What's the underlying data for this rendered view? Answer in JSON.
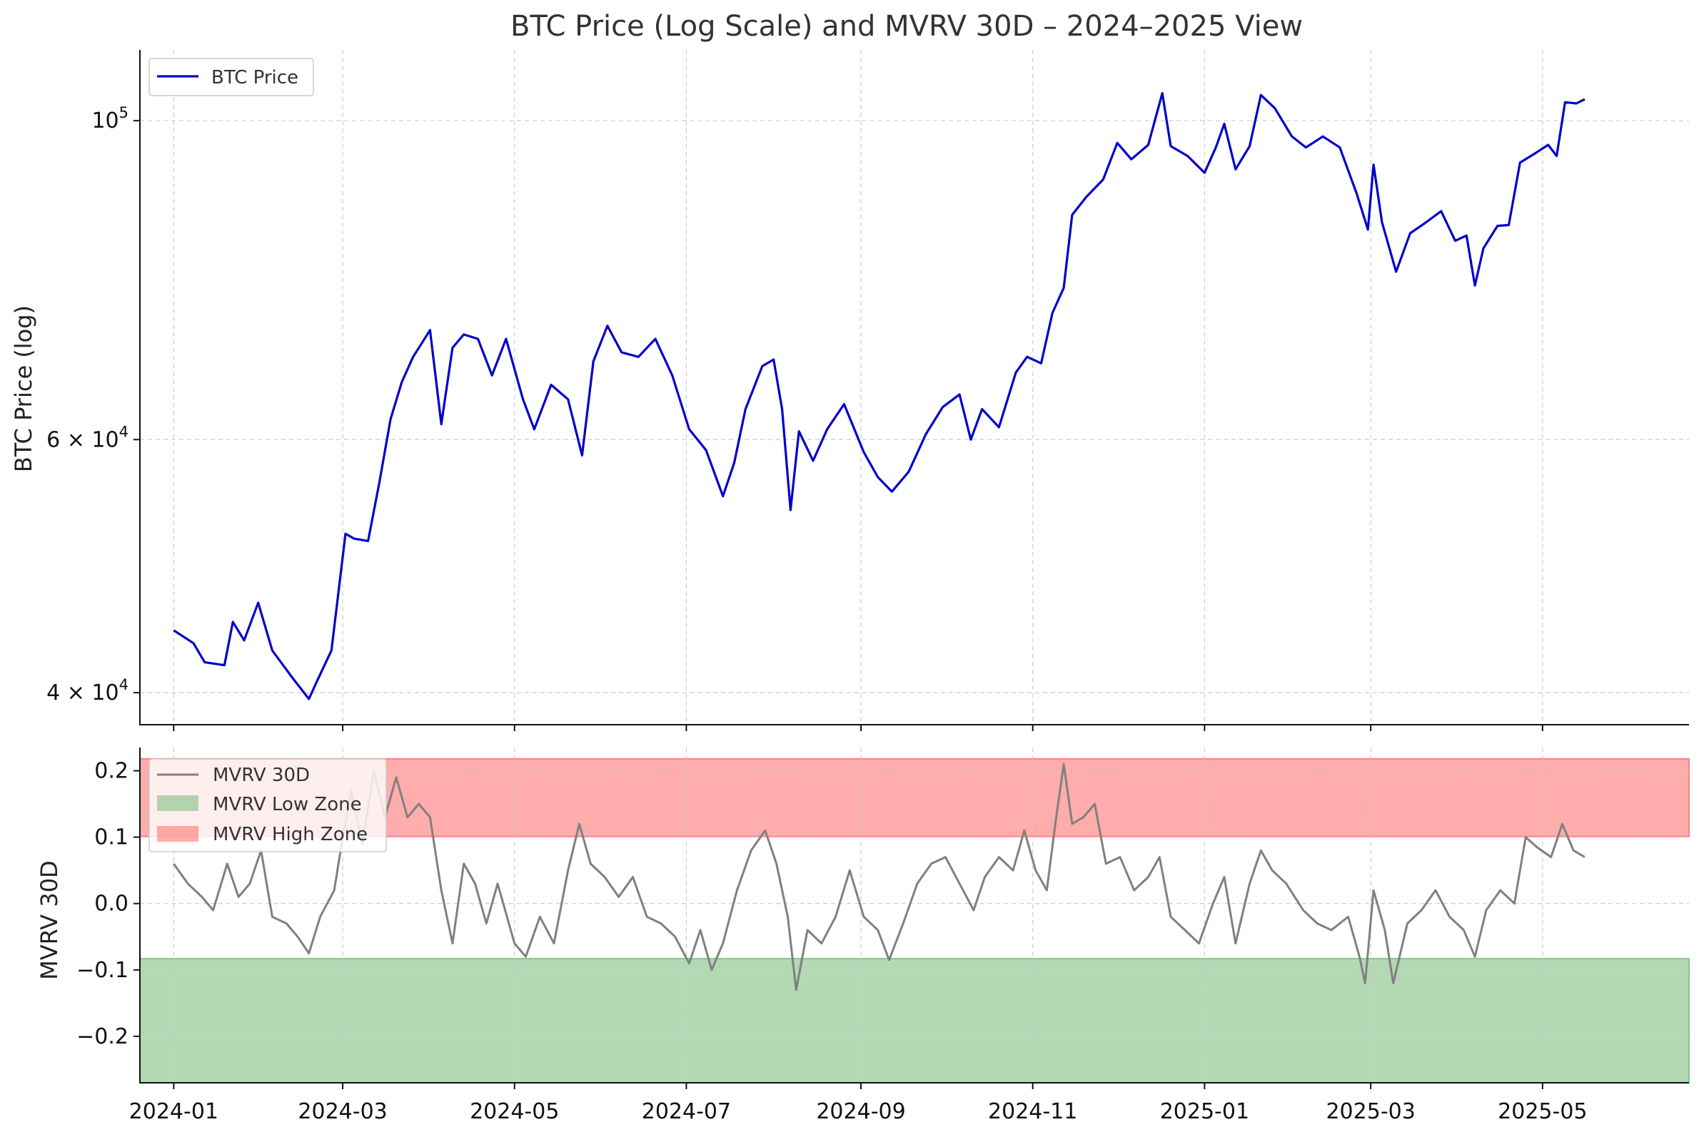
{
  "chart_data": [
    {
      "type": "line",
      "title": "BTC Price (Log Scale) and MVRV 30D – 2024–2025 View",
      "ylabel": "BTC Price (log)",
      "y_scale": "log",
      "ylim": [
        38000,
        112000
      ],
      "grid": true,
      "legend_position": "top-left",
      "y_ticks": [
        {
          "value": 40000,
          "base": "4 × 10",
          "exp": "4"
        },
        {
          "value": 60000,
          "base": "6 × 10",
          "exp": "4"
        },
        {
          "value": 100000,
          "base": "10",
          "exp": "5"
        }
      ],
      "series": [
        {
          "name": "BTC Price",
          "color": "#0000cc",
          "points": [
            [
              "2024-01-01",
              44200
            ],
            [
              "2024-01-08",
              43300
            ],
            [
              "2024-01-12",
              42000
            ],
            [
              "2024-01-19",
              41800
            ],
            [
              "2024-01-22",
              44800
            ],
            [
              "2024-01-26",
              43500
            ],
            [
              "2024-01-31",
              46200
            ],
            [
              "2024-02-05",
              42800
            ],
            [
              "2024-02-12",
              41000
            ],
            [
              "2024-02-18",
              39600
            ],
            [
              "2024-02-21",
              40800
            ],
            [
              "2024-02-26",
              42800
            ],
            [
              "2024-03-02",
              51600
            ],
            [
              "2024-03-05",
              51200
            ],
            [
              "2024-03-10",
              51000
            ],
            [
              "2024-03-14",
              56000
            ],
            [
              "2024-03-18",
              62000
            ],
            [
              "2024-03-22",
              65800
            ],
            [
              "2024-03-26",
              68500
            ],
            [
              "2024-04-01",
              71500
            ],
            [
              "2024-04-05",
              61500
            ],
            [
              "2024-04-09",
              69500
            ],
            [
              "2024-04-13",
              71000
            ],
            [
              "2024-04-18",
              70500
            ],
            [
              "2024-04-23",
              66500
            ],
            [
              "2024-04-28",
              70500
            ],
            [
              "2024-05-04",
              64000
            ],
            [
              "2024-05-08",
              61000
            ],
            [
              "2024-05-14",
              65500
            ],
            [
              "2024-05-20",
              64000
            ],
            [
              "2024-05-25",
              58500
            ],
            [
              "2024-05-29",
              68000
            ],
            [
              "2024-06-03",
              72000
            ],
            [
              "2024-06-08",
              69000
            ],
            [
              "2024-06-14",
              68500
            ],
            [
              "2024-06-20",
              70500
            ],
            [
              "2024-06-26",
              66500
            ],
            [
              "2024-07-02",
              61000
            ],
            [
              "2024-07-08",
              59000
            ],
            [
              "2024-07-14",
              54800
            ],
            [
              "2024-07-18",
              57800
            ],
            [
              "2024-07-22",
              63000
            ],
            [
              "2024-07-28",
              67500
            ],
            [
              "2024-08-01",
              68200
            ],
            [
              "2024-08-04",
              63000
            ],
            [
              "2024-08-07",
              53600
            ],
            [
              "2024-08-10",
              60800
            ],
            [
              "2024-08-15",
              58000
            ],
            [
              "2024-08-20",
              61000
            ],
            [
              "2024-08-26",
              63500
            ],
            [
              "2024-09-02",
              58800
            ],
            [
              "2024-09-07",
              56500
            ],
            [
              "2024-09-12",
              55200
            ],
            [
              "2024-09-18",
              57000
            ],
            [
              "2024-09-24",
              60500
            ],
            [
              "2024-09-30",
              63200
            ],
            [
              "2024-10-06",
              64500
            ],
            [
              "2024-10-10",
              60000
            ],
            [
              "2024-10-14",
              63000
            ],
            [
              "2024-10-20",
              61200
            ],
            [
              "2024-10-26",
              66800
            ],
            [
              "2024-10-30",
              68500
            ],
            [
              "2024-11-04",
              67800
            ],
            [
              "2024-11-08",
              73500
            ],
            [
              "2024-11-12",
              76500
            ],
            [
              "2024-11-15",
              86000
            ],
            [
              "2024-11-20",
              88500
            ],
            [
              "2024-11-26",
              91000
            ],
            [
              "2024-12-01",
              96500
            ],
            [
              "2024-12-06",
              94000
            ],
            [
              "2024-12-12",
              96200
            ],
            [
              "2024-12-17",
              104500
            ],
            [
              "2024-12-20",
              96000
            ],
            [
              "2024-12-26",
              94500
            ],
            [
              "2025-01-01",
              92000
            ],
            [
              "2025-01-05",
              95800
            ],
            [
              "2025-01-08",
              99500
            ],
            [
              "2025-01-12",
              92500
            ],
            [
              "2025-01-17",
              96000
            ],
            [
              "2025-01-21",
              104200
            ],
            [
              "2025-01-26",
              102000
            ],
            [
              "2025-02-01",
              97500
            ],
            [
              "2025-02-06",
              95800
            ],
            [
              "2025-02-12",
              97500
            ],
            [
              "2025-02-18",
              95800
            ],
            [
              "2025-02-24",
              89000
            ],
            [
              "2025-02-28",
              84000
            ],
            [
              "2025-03-02",
              93200
            ],
            [
              "2025-03-05",
              85000
            ],
            [
              "2025-03-10",
              78500
            ],
            [
              "2025-03-15",
              83500
            ],
            [
              "2025-03-20",
              84800
            ],
            [
              "2025-03-26",
              86500
            ],
            [
              "2025-03-31",
              82500
            ],
            [
              "2025-04-04",
              83200
            ],
            [
              "2025-04-07",
              76800
            ],
            [
              "2025-04-10",
              81500
            ],
            [
              "2025-04-15",
              84500
            ],
            [
              "2025-04-19",
              84600
            ],
            [
              "2025-04-23",
              93500
            ],
            [
              "2025-04-28",
              94800
            ],
            [
              "2025-05-03",
              96200
            ],
            [
              "2025-05-06",
              94500
            ],
            [
              "2025-05-09",
              103000
            ],
            [
              "2025-05-13",
              102800
            ],
            [
              "2025-05-16",
              103500
            ]
          ]
        }
      ]
    },
    {
      "type": "line",
      "ylabel": "MVRV 30D",
      "ylim": [
        -0.27,
        0.235
      ],
      "grid": true,
      "legend_position": "top-left",
      "y_ticks": [
        {
          "value": 0.2,
          "label": "0.2"
        },
        {
          "value": 0.1,
          "label": "0.1"
        },
        {
          "value": 0.0,
          "label": "0.0"
        },
        {
          "value": -0.1,
          "label": "−0.1"
        },
        {
          "value": -0.2,
          "label": "−0.2"
        }
      ],
      "x_ticks": [
        {
          "date": "2024-01-01",
          "label": "2024-01"
        },
        {
          "date": "2024-03-01",
          "label": "2024-03"
        },
        {
          "date": "2024-05-01",
          "label": "2024-05"
        },
        {
          "date": "2024-07-01",
          "label": "2024-07"
        },
        {
          "date": "2024-09-01",
          "label": "2024-09"
        },
        {
          "date": "2024-11-01",
          "label": "2024-11"
        },
        {
          "date": "2025-01-01",
          "label": "2025-01"
        },
        {
          "date": "2025-03-01",
          "label": "2025-03"
        },
        {
          "date": "2025-05-01",
          "label": "2025-05"
        }
      ],
      "bands": [
        {
          "name": "MVRV Low Zone",
          "from": -0.27,
          "to": -0.083,
          "color": "#8bc58b"
        },
        {
          "name": "MVRV High Zone",
          "from": 0.101,
          "to": 0.218,
          "color": "#ff8080"
        }
      ],
      "series": [
        {
          "name": "MVRV 30D",
          "color": "#808080",
          "points": [
            [
              "2024-01-01",
              0.06
            ],
            [
              "2024-01-06",
              0.03
            ],
            [
              "2024-01-11",
              0.01
            ],
            [
              "2024-01-15",
              -0.01
            ],
            [
              "2024-01-20",
              0.06
            ],
            [
              "2024-01-24",
              0.01
            ],
            [
              "2024-01-28",
              0.03
            ],
            [
              "2024-02-01",
              0.08
            ],
            [
              "2024-02-05",
              -0.02
            ],
            [
              "2024-02-10",
              -0.03
            ],
            [
              "2024-02-14",
              -0.05
            ],
            [
              "2024-02-18",
              -0.075
            ],
            [
              "2024-02-22",
              -0.02
            ],
            [
              "2024-02-27",
              0.02
            ],
            [
              "2024-03-01",
              0.1
            ],
            [
              "2024-03-04",
              0.17
            ],
            [
              "2024-03-08",
              0.09
            ],
            [
              "2024-03-12",
              0.2
            ],
            [
              "2024-03-16",
              0.13
            ],
            [
              "2024-03-20",
              0.19
            ],
            [
              "2024-03-24",
              0.13
            ],
            [
              "2024-03-28",
              0.15
            ],
            [
              "2024-04-01",
              0.13
            ],
            [
              "2024-04-05",
              0.02
            ],
            [
              "2024-04-09",
              -0.06
            ],
            [
              "2024-04-13",
              0.06
            ],
            [
              "2024-04-17",
              0.03
            ],
            [
              "2024-04-21",
              -0.03
            ],
            [
              "2024-04-25",
              0.03
            ],
            [
              "2024-05-01",
              -0.06
            ],
            [
              "2024-05-05",
              -0.08
            ],
            [
              "2024-05-10",
              -0.02
            ],
            [
              "2024-05-15",
              -0.06
            ],
            [
              "2024-05-20",
              0.05
            ],
            [
              "2024-05-24",
              0.12
            ],
            [
              "2024-05-28",
              0.06
            ],
            [
              "2024-06-02",
              0.04
            ],
            [
              "2024-06-07",
              0.01
            ],
            [
              "2024-06-12",
              0.04
            ],
            [
              "2024-06-17",
              -0.02
            ],
            [
              "2024-06-22",
              -0.03
            ],
            [
              "2024-06-27",
              -0.05
            ],
            [
              "2024-07-02",
              -0.09
            ],
            [
              "2024-07-06",
              -0.04
            ],
            [
              "2024-07-10",
              -0.1
            ],
            [
              "2024-07-14",
              -0.06
            ],
            [
              "2024-07-19",
              0.02
            ],
            [
              "2024-07-24",
              0.08
            ],
            [
              "2024-07-29",
              0.11
            ],
            [
              "2024-08-02",
              0.06
            ],
            [
              "2024-08-06",
              -0.02
            ],
            [
              "2024-08-09",
              -0.13
            ],
            [
              "2024-08-13",
              -0.04
            ],
            [
              "2024-08-18",
              -0.06
            ],
            [
              "2024-08-23",
              -0.02
            ],
            [
              "2024-08-28",
              0.05
            ],
            [
              "2024-09-02",
              -0.02
            ],
            [
              "2024-09-07",
              -0.04
            ],
            [
              "2024-09-11",
              -0.085
            ],
            [
              "2024-09-16",
              -0.03
            ],
            [
              "2024-09-21",
              0.03
            ],
            [
              "2024-09-26",
              0.06
            ],
            [
              "2024-10-01",
              0.07
            ],
            [
              "2024-10-06",
              0.03
            ],
            [
              "2024-10-11",
              -0.01
            ],
            [
              "2024-10-15",
              0.04
            ],
            [
              "2024-10-20",
              0.07
            ],
            [
              "2024-10-25",
              0.05
            ],
            [
              "2024-10-29",
              0.11
            ],
            [
              "2024-11-02",
              0.05
            ],
            [
              "2024-11-06",
              0.02
            ],
            [
              "2024-11-09",
              0.12
            ],
            [
              "2024-11-12",
              0.21
            ],
            [
              "2024-11-15",
              0.12
            ],
            [
              "2024-11-19",
              0.13
            ],
            [
              "2024-11-23",
              0.15
            ],
            [
              "2024-11-27",
              0.06
            ],
            [
              "2024-12-02",
              0.07
            ],
            [
              "2024-12-07",
              0.02
            ],
            [
              "2024-12-12",
              0.04
            ],
            [
              "2024-12-16",
              0.07
            ],
            [
              "2024-12-20",
              -0.02
            ],
            [
              "2024-12-25",
              -0.04
            ],
            [
              "2024-12-30",
              -0.06
            ],
            [
              "2025-01-04",
              0.0
            ],
            [
              "2025-01-08",
              0.04
            ],
            [
              "2025-01-12",
              -0.06
            ],
            [
              "2025-01-17",
              0.03
            ],
            [
              "2025-01-21",
              0.08
            ],
            [
              "2025-01-25",
              0.05
            ],
            [
              "2025-01-30",
              0.03
            ],
            [
              "2025-02-05",
              -0.01
            ],
            [
              "2025-02-10",
              -0.03
            ],
            [
              "2025-02-15",
              -0.04
            ],
            [
              "2025-02-21",
              -0.02
            ],
            [
              "2025-02-25",
              -0.08
            ],
            [
              "2025-02-27",
              -0.12
            ],
            [
              "2025-03-02",
              0.02
            ],
            [
              "2025-03-06",
              -0.04
            ],
            [
              "2025-03-09",
              -0.12
            ],
            [
              "2025-03-14",
              -0.03
            ],
            [
              "2025-03-19",
              -0.01
            ],
            [
              "2025-03-24",
              0.02
            ],
            [
              "2025-03-29",
              -0.02
            ],
            [
              "2025-04-03",
              -0.04
            ],
            [
              "2025-04-07",
              -0.08
            ],
            [
              "2025-04-11",
              -0.01
            ],
            [
              "2025-04-16",
              0.02
            ],
            [
              "2025-04-21",
              0.0
            ],
            [
              "2025-04-25",
              0.1
            ],
            [
              "2025-04-29",
              0.085
            ],
            [
              "2025-05-04",
              0.07
            ],
            [
              "2025-05-08",
              0.12
            ],
            [
              "2025-05-12",
              0.08
            ],
            [
              "2025-05-16",
              0.07
            ]
          ]
        }
      ]
    }
  ]
}
